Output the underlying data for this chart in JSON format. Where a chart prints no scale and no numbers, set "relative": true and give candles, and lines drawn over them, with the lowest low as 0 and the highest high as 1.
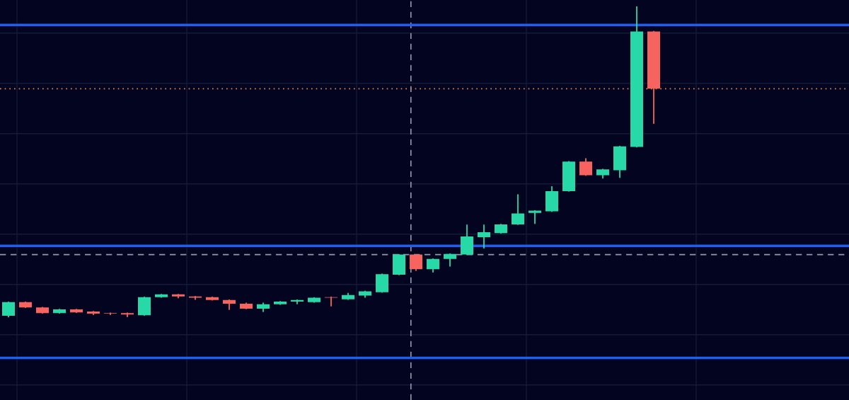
{
  "chart_data": {
    "type": "candlestick",
    "relative": true,
    "grid": true,
    "categories": [
      null,
      null,
      null,
      null,
      null,
      null,
      null,
      null,
      null,
      null,
      null,
      null,
      null,
      null,
      null,
      null,
      null,
      null,
      null,
      null,
      null,
      null,
      null,
      null,
      null,
      null,
      null,
      null,
      null,
      null,
      null,
      null,
      null,
      null,
      null,
      null,
      null,
      null,
      null,
      null,
      null,
      null,
      null,
      null,
      null,
      null,
      null,
      null,
      null,
      null
    ],
    "ohlc": [
      [
        0.005,
        0.049,
        0.0,
        0.049
      ],
      [
        0.049,
        0.049,
        0.032,
        0.032
      ],
      [
        0.032,
        0.032,
        0.014,
        0.014
      ],
      [
        0.014,
        0.026,
        0.014,
        0.026
      ],
      [
        0.026,
        0.026,
        0.016,
        0.016
      ],
      [
        0.019,
        0.019,
        0.009,
        0.012
      ],
      [
        0.014,
        0.014,
        0.009,
        0.012
      ],
      [
        0.014,
        0.014,
        0.002,
        0.009
      ],
      [
        0.007,
        0.065,
        0.007,
        0.065
      ],
      [
        0.065,
        0.074,
        0.065,
        0.074
      ],
      [
        0.074,
        0.074,
        0.063,
        0.067
      ],
      [
        0.067,
        0.067,
        0.058,
        0.063
      ],
      [
        0.065,
        0.065,
        0.056,
        0.056
      ],
      [
        0.056,
        0.056,
        0.026,
        0.044
      ],
      [
        0.044,
        0.046,
        0.028,
        0.028
      ],
      [
        0.028,
        0.046,
        0.019,
        0.042
      ],
      [
        0.042,
        0.051,
        0.042,
        0.051
      ],
      [
        0.051,
        0.056,
        0.044,
        0.056
      ],
      [
        0.049,
        0.063,
        0.049,
        0.063
      ],
      [
        0.065,
        0.065,
        0.037,
        0.063
      ],
      [
        0.058,
        0.077,
        0.058,
        0.072
      ],
      [
        0.07,
        0.084,
        0.065,
        0.084
      ],
      [
        0.081,
        0.139,
        0.081,
        0.139
      ],
      [
        0.137,
        0.202,
        0.137,
        0.202
      ],
      [
        0.202,
        0.202,
        0.151,
        0.155
      ],
      [
        0.155,
        0.188,
        0.146,
        0.188
      ],
      [
        0.188,
        0.204,
        0.165,
        0.204
      ],
      [
        0.202,
        0.297,
        0.202,
        0.26
      ],
      [
        0.258,
        0.297,
        0.223,
        0.274
      ],
      [
        0.271,
        0.299,
        0.271,
        0.299
      ],
      [
        0.299,
        0.394,
        0.299,
        0.334
      ],
      [
        0.336,
        0.343,
        0.302,
        0.343
      ],
      [
        0.341,
        0.42,
        0.341,
        0.406
      ],
      [
        0.406,
        0.501,
        0.406,
        0.501
      ],
      [
        0.501,
        0.51,
        0.457,
        0.457
      ],
      [
        0.457,
        0.476,
        0.448,
        0.476
      ],
      [
        0.473,
        0.55,
        0.45,
        0.55
      ],
      [
        0.548,
        1.0,
        0.548,
        0.919
      ],
      [
        0.919,
        0.919,
        0.624,
        0.735
      ],
      null,
      null,
      null,
      null,
      null,
      null,
      null,
      null,
      null,
      null,
      null
    ],
    "colors": [
      "#26d9a6",
      "#f7635f",
      "#f7635f",
      "#26d9a6",
      "#f7635f",
      "#f7635f",
      "#f7635f",
      "#f7635f",
      "#26d9a6",
      "#26d9a6",
      "#f7635f",
      "#f7635f",
      "#f7635f",
      "#f7635f",
      "#f7635f",
      "#26d9a6",
      "#26d9a6",
      "#26d9a6",
      "#26d9a6",
      "#f7635f",
      "#26d9a6",
      "#26d9a6",
      "#26d9a6",
      "#26d9a6",
      "#f7635f",
      "#26d9a6",
      "#26d9a6",
      "#26d9a6",
      "#26d9a6",
      "#26d9a6",
      "#26d9a6",
      "#26d9a6",
      "#26d9a6",
      "#26d9a6",
      "#f7635f",
      "#26d9a6",
      "#26d9a6",
      "#26d9a6",
      "#f7635f",
      null,
      null,
      null,
      null,
      null,
      null,
      null,
      null,
      null,
      null,
      null
    ],
    "ref_lines": [
      {
        "axis": "y",
        "value": 0.94,
        "color": "#1e5ef0",
        "line_style": "solid"
      },
      {
        "axis": "y",
        "value": 0.23,
        "color": "#1e5ef0",
        "line_style": "solid"
      },
      {
        "axis": "y",
        "value": -0.13,
        "color": "#1e5ef0",
        "line_style": "solid"
      },
      {
        "axis": "y",
        "value": 0.735,
        "color": "#e8864a",
        "line_style": "dotted"
      },
      {
        "axis": "y",
        "value": 0.202,
        "color": "#9598a6",
        "line_style": "dashed"
      }
    ]
  }
}
